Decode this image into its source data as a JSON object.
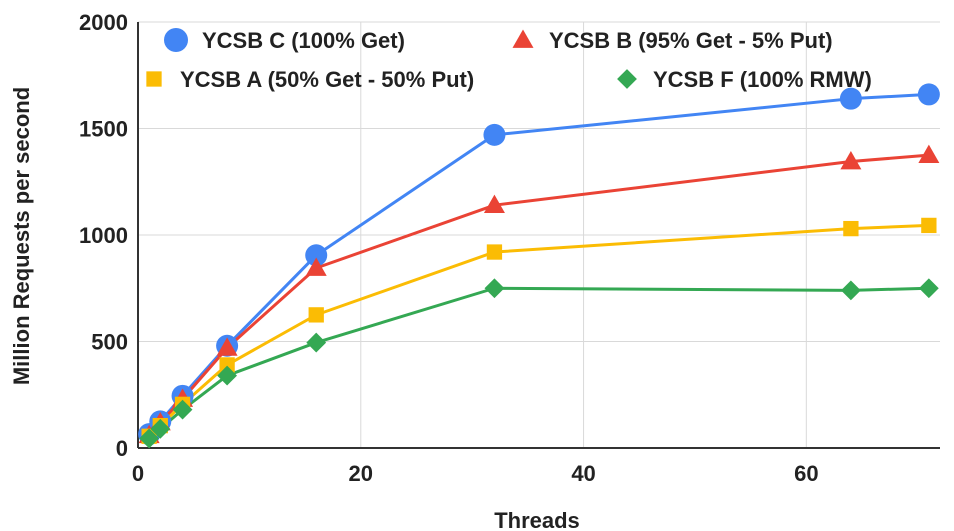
{
  "chart_data": {
    "type": "line",
    "xlabel": "Threads",
    "ylabel": "Million Requests per second",
    "xlim": [
      0,
      72
    ],
    "ylim": [
      0,
      2000
    ],
    "xticks": [
      0,
      20,
      40,
      60
    ],
    "yticks": [
      0,
      500,
      1000,
      1500,
      2000
    ],
    "grid": true,
    "legend_position": "top",
    "x": [
      1,
      2,
      4,
      8,
      16,
      32,
      64,
      71
    ],
    "series": [
      {
        "name": "YCSB C (100% Get)",
        "marker": "circle",
        "color": "#4285F4",
        "values": [
          65,
          125,
          245,
          480,
          905,
          1470,
          1640,
          1660
        ]
      },
      {
        "name": "YCSB B (95% Get - 5% Put)",
        "marker": "triangle",
        "color": "#EA4335",
        "values": [
          60,
          120,
          230,
          470,
          845,
          1140,
          1345,
          1375
        ]
      },
      {
        "name": "YCSB A (50% Get - 50% Put)",
        "marker": "square",
        "color": "#FBBC04",
        "values": [
          55,
          105,
          205,
          390,
          625,
          920,
          1030,
          1045
        ]
      },
      {
        "name": "YCSB F (100% RMW)",
        "marker": "diamond",
        "color": "#34A853",
        "values": [
          45,
          90,
          180,
          340,
          495,
          750,
          740,
          750
        ]
      }
    ]
  }
}
